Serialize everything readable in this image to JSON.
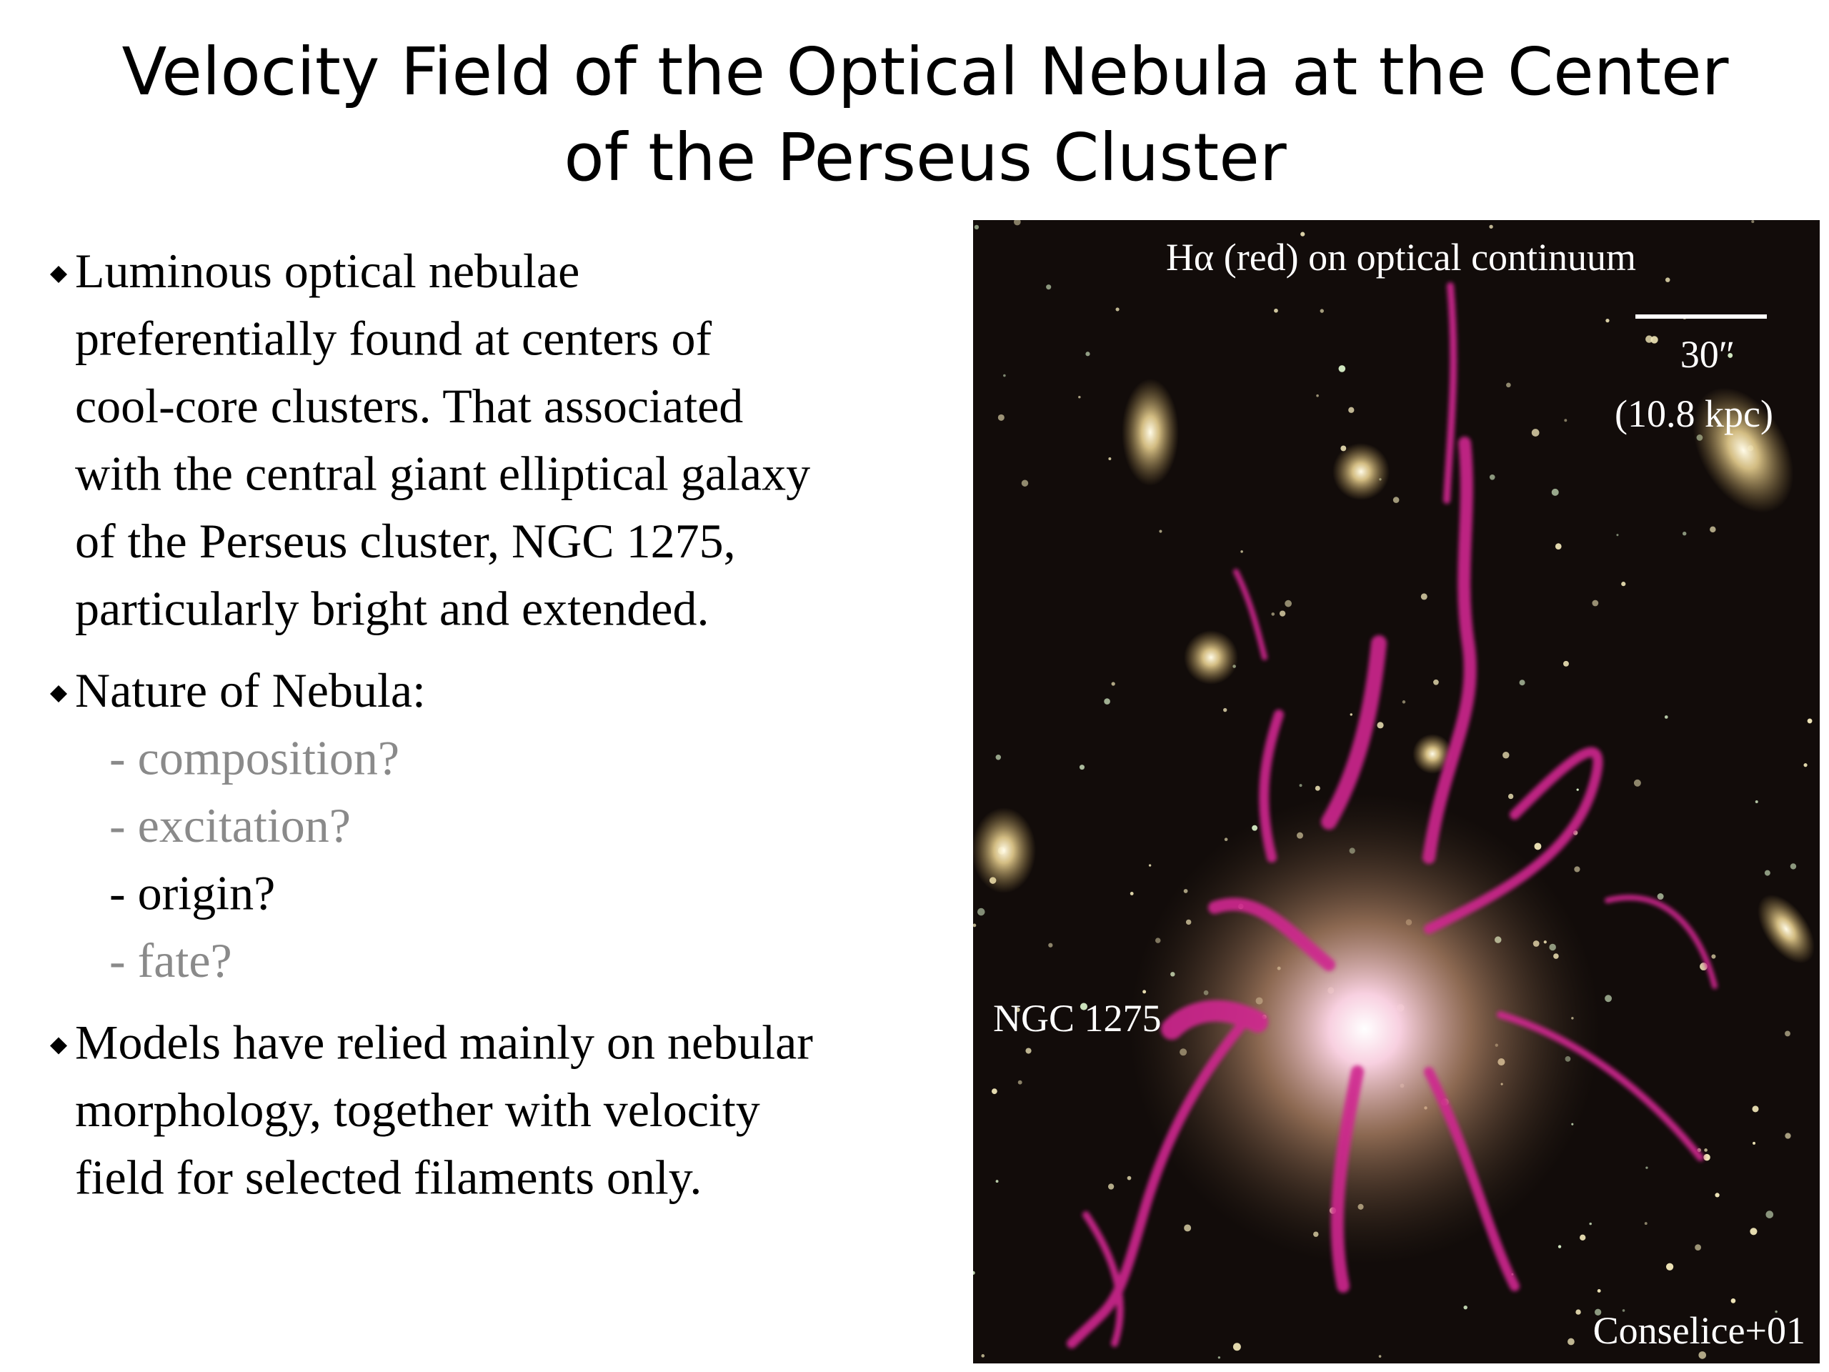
{
  "title": [
    "Velocity Field of the Optical Nebula at the Center",
    "of the Perseus Cluster"
  ],
  "bullets": [
    {
      "lines": [
        "Luminous optical nebulae",
        "preferentially found at centers of",
        "cool-core clusters.  That associated",
        "with the central giant elliptical galaxy",
        "of the Perseus cluster, NGC 1275,",
        "particularly bright and extended."
      ]
    },
    {
      "lines": [
        "Nature of Nebula:"
      ],
      "subitems": [
        {
          "text": "- composition?",
          "emphasis": false
        },
        {
          "text": "- excitation?",
          "emphasis": false
        },
        {
          "text": "- origin?",
          "emphasis": true
        },
        {
          "text": "- fate?",
          "emphasis": false
        }
      ]
    },
    {
      "lines": [
        "Models have relied mainly on nebular",
        "morphology, together with velocity",
        "field for selected filaments only."
      ]
    }
  ],
  "image": {
    "caption": "Hα (red) on optical continuum",
    "scale_label": "30″",
    "scale_sub": "(10.8 kpc)",
    "galaxy_label": "NGC 1275",
    "credit": "Conselice+01"
  }
}
